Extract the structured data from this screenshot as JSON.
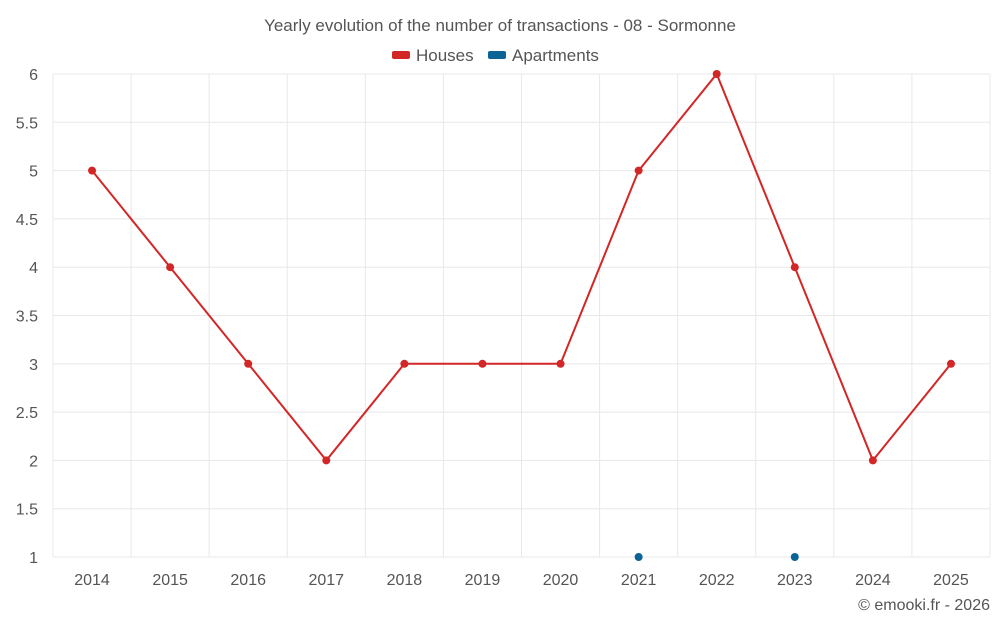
{
  "chart_data": {
    "type": "line",
    "title": "Yearly evolution of the number of transactions - 08 - Sormonne",
    "categories": [
      "2014",
      "2015",
      "2016",
      "2017",
      "2018",
      "2019",
      "2020",
      "2021",
      "2022",
      "2023",
      "2024",
      "2025"
    ],
    "series": [
      {
        "name": "Houses",
        "color": "#d32626",
        "values": [
          5,
          4,
          3,
          2,
          3,
          3,
          3,
          5,
          6,
          4,
          2,
          3
        ]
      },
      {
        "name": "Apartments",
        "color": "#0a6496",
        "values": [
          null,
          null,
          null,
          null,
          null,
          null,
          null,
          1,
          null,
          1,
          null,
          null
        ]
      }
    ],
    "ylim": [
      1,
      6
    ],
    "yticks": [
      "1",
      "1.5",
      "2",
      "2.5",
      "3",
      "3.5",
      "4",
      "4.5",
      "5",
      "5.5",
      "6"
    ],
    "xlabel": "",
    "ylabel": "",
    "grid": true,
    "legend": "top-center"
  },
  "footer": {
    "credit": "© emooki.fr - 2026"
  }
}
